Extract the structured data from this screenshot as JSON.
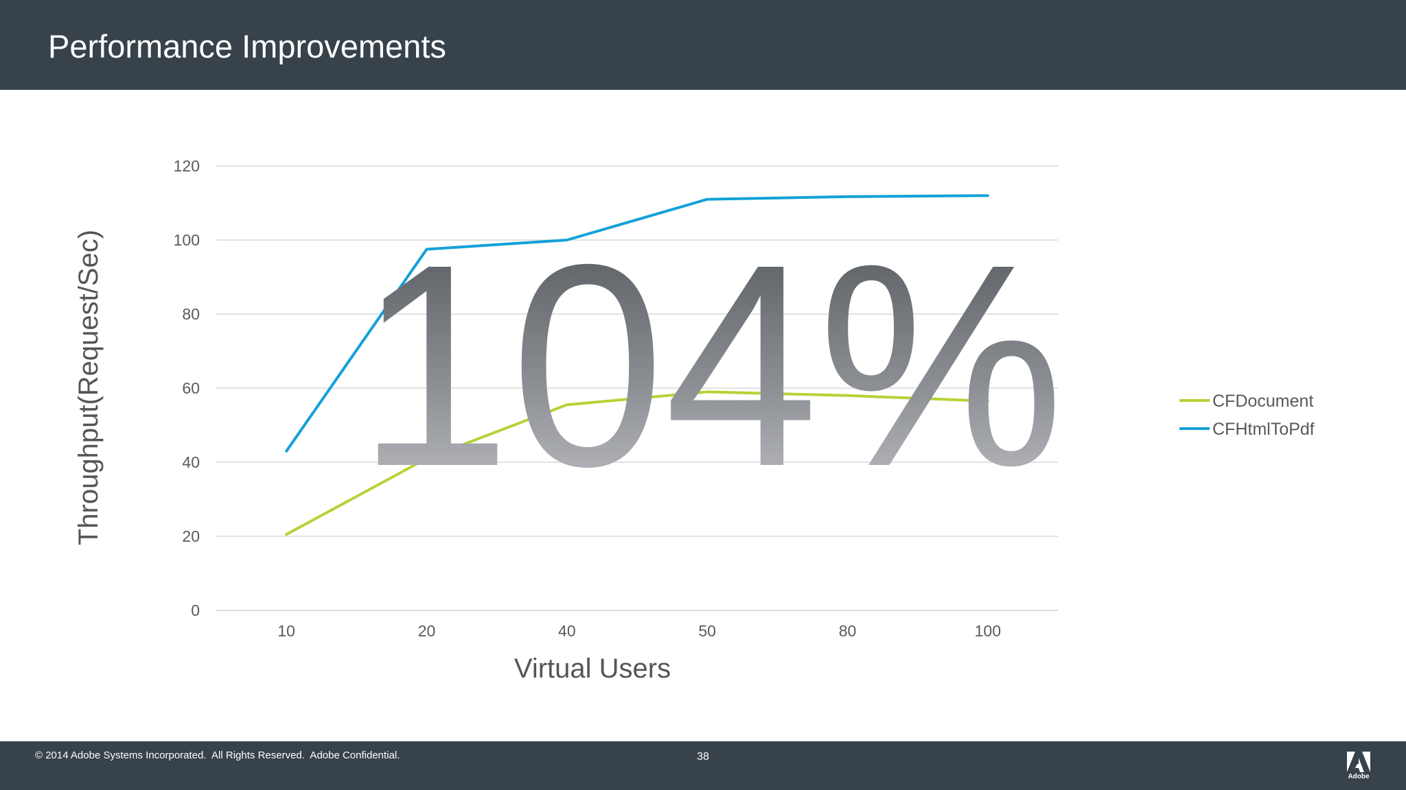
{
  "slide": {
    "title": "Performance Improvements",
    "highlight": "104%"
  },
  "footer": {
    "copyright": "© 2014 Adobe Systems Incorporated.  All Rights Reserved.  Adobe Confidential.",
    "page_number": "38",
    "logo_text": "Adobe"
  },
  "colors": {
    "header_bg": "#37424a",
    "cfdocument": "#b4d335",
    "cfhtmltopdf": "#13a1d8",
    "gridline": "#d9d9d9"
  },
  "chart_data": {
    "type": "line",
    "categories": [
      "10",
      "20",
      "40",
      "50",
      "80",
      "100"
    ],
    "series": [
      {
        "name": "CFDocument",
        "color": "#b4d335",
        "values": [
          20.5,
          41,
          55.5,
          59,
          58,
          56.5
        ]
      },
      {
        "name": "CFHtmlToPdf",
        "color": "#13a1d8",
        "values": [
          43,
          97.5,
          100,
          111,
          111.7,
          112
        ]
      }
    ],
    "xlabel": "Virtual Users",
    "ylabel": "Throughput(Request/Sec)",
    "ylim": [
      0,
      120
    ],
    "yticks": [
      0,
      20,
      40,
      60,
      80,
      100,
      120
    ],
    "grid": true,
    "legend": "right"
  }
}
